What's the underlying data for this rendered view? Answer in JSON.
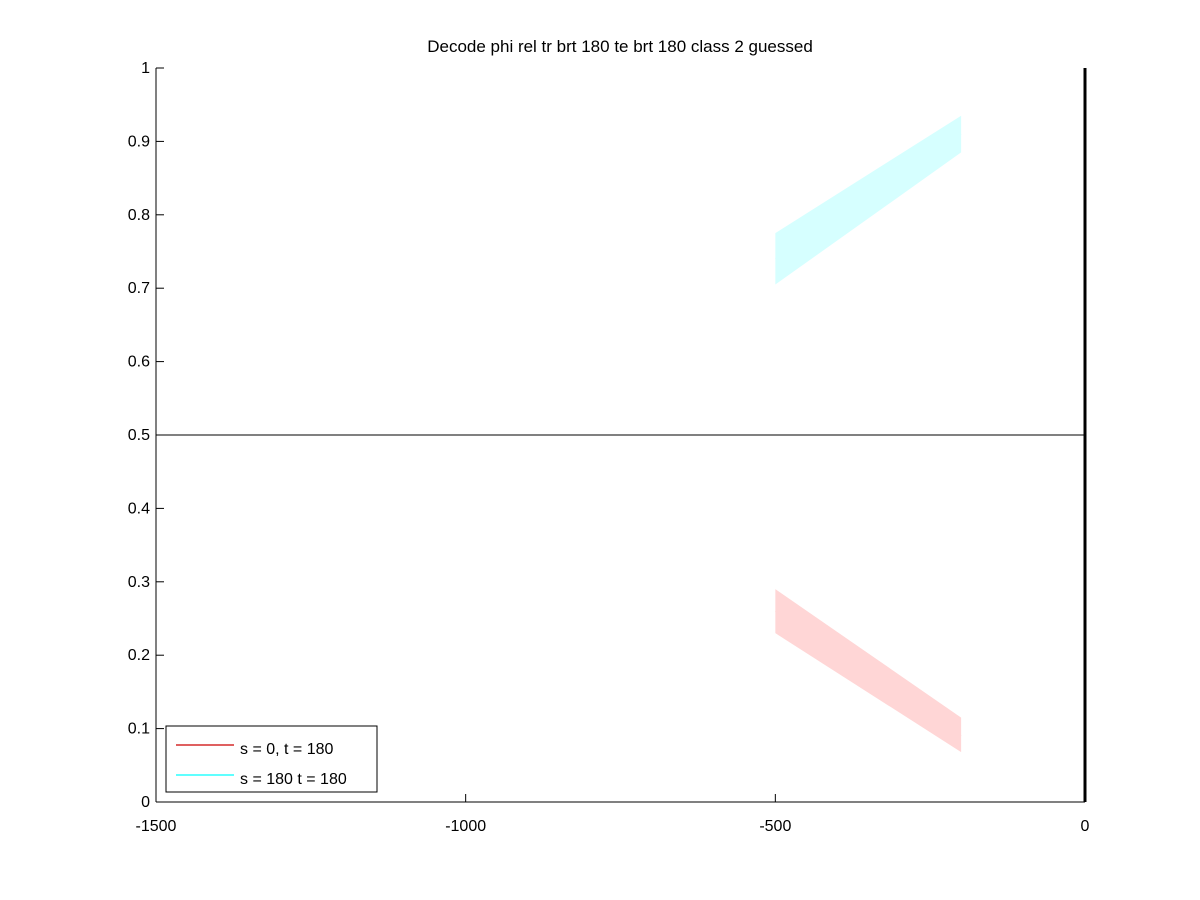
{
  "chart_data": {
    "type": "area",
    "title": "Decode phi rel tr brt 180 te brt 180  class 2 guessed",
    "xlabel": "",
    "ylabel": "",
    "xlim": [
      -1500,
      0
    ],
    "ylim": [
      0,
      1
    ],
    "grid": false,
    "xticks": [
      -1500,
      -1000,
      -500,
      0
    ],
    "xtick_labels": [
      "-1500",
      "-1000",
      "-500",
      "0"
    ],
    "yticks": [
      0,
      0.1,
      0.2,
      0.3,
      0.4,
      0.5,
      0.6,
      0.7,
      0.8,
      0.9,
      1
    ],
    "ytick_labels": [
      "0",
      "0.1",
      "0.2",
      "0.3",
      "0.4",
      "0.5",
      "0.6",
      "0.7",
      "0.8",
      "0.9",
      "1"
    ],
    "reference_lines": {
      "horizontal": [
        {
          "y": 0.5,
          "color": "#000000"
        }
      ],
      "vertical": [
        {
          "x": 0,
          "color": "#000000"
        }
      ]
    },
    "legend": {
      "location": "bottom-left"
    },
    "series": [
      {
        "name": "s = 0, t = 180",
        "line_color": "#cc0000",
        "band_color": "#ffd6d6",
        "x": [
          -500,
          -200
        ],
        "mean": [
          0.26,
          0.09
        ],
        "upper": [
          0.29,
          0.115
        ],
        "lower": [
          0.23,
          0.068
        ]
      },
      {
        "name": "s = 180 t = 180",
        "line_color": "#00ffff",
        "band_color": "#d6ffff",
        "x": [
          -500,
          -200
        ],
        "mean": [
          0.74,
          0.91
        ],
        "upper": [
          0.775,
          0.935
        ],
        "lower": [
          0.705,
          0.885
        ]
      }
    ]
  }
}
